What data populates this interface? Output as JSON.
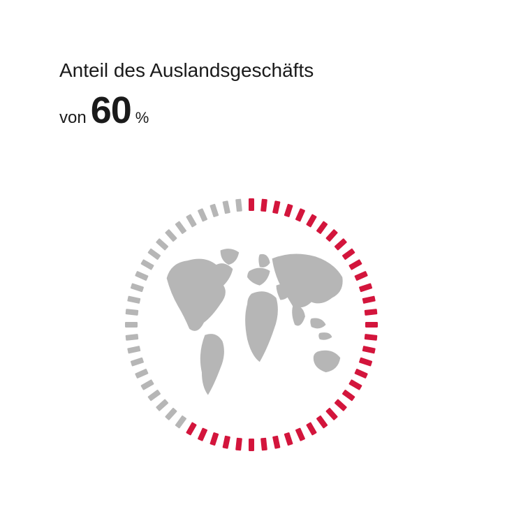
{
  "title": "Anteil des Auslandsgeschäfts",
  "value": {
    "prefix": "von",
    "number": "60",
    "unit": "%"
  },
  "chart": {
    "type": "radial-percentage",
    "percentage": 60,
    "total_ticks": 60,
    "tick_width": 8,
    "tick_height": 18,
    "tick_radius": 172,
    "active_color": "#d3153c",
    "inactive_color": "#b6b6b6",
    "start_angle_deg": -90,
    "direction": "clockwise",
    "background_color": "#ffffff"
  },
  "globe": {
    "fill": "#b6b6b6",
    "radius": 150
  },
  "typography": {
    "title_fontsize": 28,
    "title_weight": 400,
    "number_fontsize": 54,
    "number_weight": 800,
    "prefix_fontsize": 24,
    "unit_fontsize": 22,
    "text_color": "#1a1a1a"
  }
}
